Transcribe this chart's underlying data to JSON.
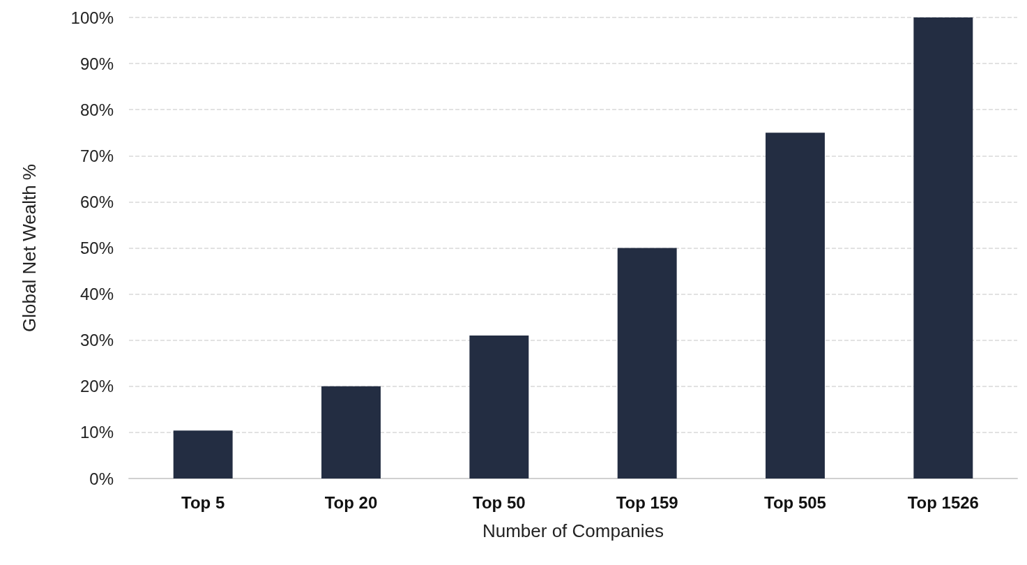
{
  "chart_data": {
    "type": "bar",
    "xlabel": "Number of Companies",
    "ylabel": "Global Net Wealth %",
    "categories": [
      "Top 5",
      "Top 20",
      "Top 50",
      "Top 159",
      "Top 505",
      "Top 1526"
    ],
    "values": [
      10.4,
      20,
      31,
      50,
      75,
      100
    ],
    "color": "#232d42",
    "ylim": [
      0,
      100
    ],
    "yticks": [
      {
        "value": 0,
        "label": "0%"
      },
      {
        "value": 10,
        "label": "10%"
      },
      {
        "value": 20,
        "label": "20%"
      },
      {
        "value": 30,
        "label": "30%"
      },
      {
        "value": 40,
        "label": "40%"
      },
      {
        "value": 50,
        "label": "50%"
      },
      {
        "value": 60,
        "label": "60%"
      },
      {
        "value": 70,
        "label": "70%"
      },
      {
        "value": 80,
        "label": "80%"
      },
      {
        "value": 90,
        "label": "90%"
      },
      {
        "value": 100,
        "label": "100%"
      }
    ],
    "grid": "y"
  }
}
